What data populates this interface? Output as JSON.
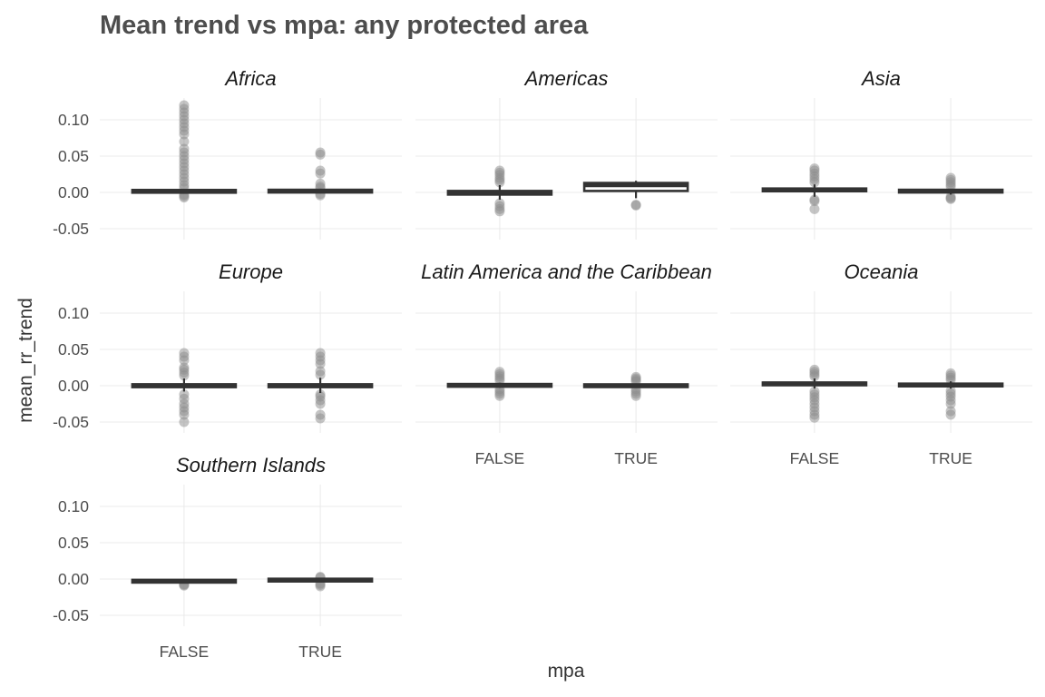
{
  "chart_data": {
    "type": "box",
    "title": "Mean trend vs mpa: any protected area",
    "xlabel": "mpa",
    "ylabel": "mean_rr_trend",
    "categories": [
      "FALSE",
      "TRUE"
    ],
    "y_ticks": [
      "0.10",
      "0.05",
      "0.00",
      "-0.05"
    ],
    "y_tick_values": [
      0.1,
      0.05,
      0.0,
      -0.05
    ],
    "ylim": [
      -0.065,
      0.13
    ],
    "grid": true,
    "facet_cols": 3,
    "panels": [
      {
        "name": "Africa",
        "boxes": [
          {
            "category": "FALSE",
            "q1": 0.0005,
            "median": 0.0015,
            "q3": 0.0025,
            "whisker_low": -0.001,
            "whisker_high": 0.004,
            "outliers": [
              0.12,
              0.115,
              0.11,
              0.105,
              0.1,
              0.095,
              0.09,
              0.085,
              0.08,
              0.07,
              0.06,
              0.055,
              0.05,
              0.045,
              0.04,
              0.035,
              0.03,
              0.025,
              0.02,
              0.015,
              0.01,
              0.006,
              -0.003,
              -0.005,
              -0.007
            ]
          },
          {
            "category": "TRUE",
            "q1": 0.001,
            "median": 0.0015,
            "q3": 0.0025,
            "whisker_low": 0.0,
            "whisker_high": 0.004,
            "outliers": [
              0.055,
              0.052,
              0.03,
              0.026,
              0.012,
              0.008,
              0.006,
              -0.002,
              -0.004
            ]
          }
        ]
      },
      {
        "name": "Americas",
        "boxes": [
          {
            "category": "FALSE",
            "q1": -0.003,
            "median": 0.0,
            "q3": 0.002,
            "whisker_low": -0.01,
            "whisker_high": 0.01,
            "outliers": [
              0.03,
              0.027,
              0.024,
              0.02,
              0.017,
              0.014,
              -0.015,
              -0.019,
              -0.023,
              -0.026
            ]
          },
          {
            "category": "TRUE",
            "q1": 0.002,
            "median": 0.01,
            "q3": 0.013,
            "whisker_low": -0.008,
            "whisker_high": 0.016,
            "outliers": [
              -0.017,
              -0.018
            ]
          }
        ]
      },
      {
        "name": "Asia",
        "boxes": [
          {
            "category": "FALSE",
            "q1": 0.002,
            "median": 0.003,
            "q3": 0.005,
            "whisker_low": -0.006,
            "whisker_high": 0.011,
            "outliers": [
              0.033,
              0.03,
              0.026,
              0.022,
              0.018,
              0.014,
              -0.01,
              -0.012,
              -0.023
            ]
          },
          {
            "category": "TRUE",
            "q1": 0.001,
            "median": 0.002,
            "q3": 0.0025,
            "whisker_low": -0.003,
            "whisker_high": 0.005,
            "outliers": [
              0.02,
              0.017,
              0.014,
              0.011,
              0.008,
              -0.006,
              -0.008,
              -0.009
            ]
          }
        ]
      },
      {
        "name": "Europe",
        "boxes": [
          {
            "category": "FALSE",
            "q1": -0.002,
            "median": 0.0,
            "q3": 0.002,
            "whisker_low": -0.008,
            "whisker_high": 0.01,
            "outliers": [
              0.045,
              0.04,
              0.035,
              0.025,
              0.022,
              0.018,
              0.014,
              -0.012,
              -0.018,
              -0.025,
              -0.03,
              -0.035,
              -0.04,
              -0.05
            ]
          },
          {
            "category": "TRUE",
            "q1": -0.002,
            "median": 0.0,
            "q3": 0.002,
            "whisker_low": -0.01,
            "whisker_high": 0.011,
            "outliers": [
              0.045,
              0.04,
              0.035,
              0.03,
              0.02,
              0.015,
              -0.012,
              -0.015,
              -0.02,
              -0.025,
              -0.04,
              -0.045
            ]
          }
        ]
      },
      {
        "name": "Latin America and the Caribbean",
        "boxes": [
          {
            "category": "FALSE",
            "q1": 0.0,
            "median": 0.0005,
            "q3": 0.001,
            "whisker_low": -0.003,
            "whisker_high": 0.004,
            "outliers": [
              0.019,
              0.016,
              0.013,
              0.01,
              0.007,
              -0.005,
              -0.008,
              -0.011,
              -0.014
            ]
          },
          {
            "category": "TRUE",
            "q1": -0.0005,
            "median": 0.0,
            "q3": 0.0005,
            "whisker_low": -0.003,
            "whisker_high": 0.003,
            "outliers": [
              0.012,
              0.01,
              0.008,
              0.006,
              -0.005,
              -0.008,
              -0.011,
              -0.014
            ]
          }
        ]
      },
      {
        "name": "Oceania",
        "boxes": [
          {
            "category": "FALSE",
            "q1": 0.001,
            "median": 0.003,
            "q3": 0.004,
            "whisker_low": -0.004,
            "whisker_high": 0.01,
            "outliers": [
              0.022,
              0.019,
              0.016,
              0.013,
              -0.008,
              -0.012,
              -0.016,
              -0.02,
              -0.025,
              -0.03,
              -0.035,
              -0.04,
              -0.044
            ]
          },
          {
            "category": "TRUE",
            "q1": 0.0,
            "median": 0.001,
            "q3": 0.002,
            "whisker_low": -0.004,
            "whisker_high": 0.006,
            "outliers": [
              0.017,
              0.014,
              0.011,
              0.008,
              -0.007,
              -0.011,
              -0.015,
              -0.02,
              -0.025,
              -0.035,
              -0.04
            ]
          }
        ]
      },
      {
        "name": "Southern Islands",
        "boxes": [
          {
            "category": "FALSE",
            "q1": -0.0035,
            "median": -0.003,
            "q3": -0.0025,
            "whisker_low": -0.005,
            "whisker_high": -0.001,
            "outliers": [
              -0.007,
              -0.008,
              -0.009
            ]
          },
          {
            "category": "TRUE",
            "q1": -0.002,
            "median": -0.0015,
            "q3": -0.001,
            "whisker_low": -0.004,
            "whisker_high": 0.001,
            "outliers": [
              0.003,
              0.002,
              -0.006,
              -0.008,
              -0.01
            ]
          }
        ]
      }
    ]
  }
}
